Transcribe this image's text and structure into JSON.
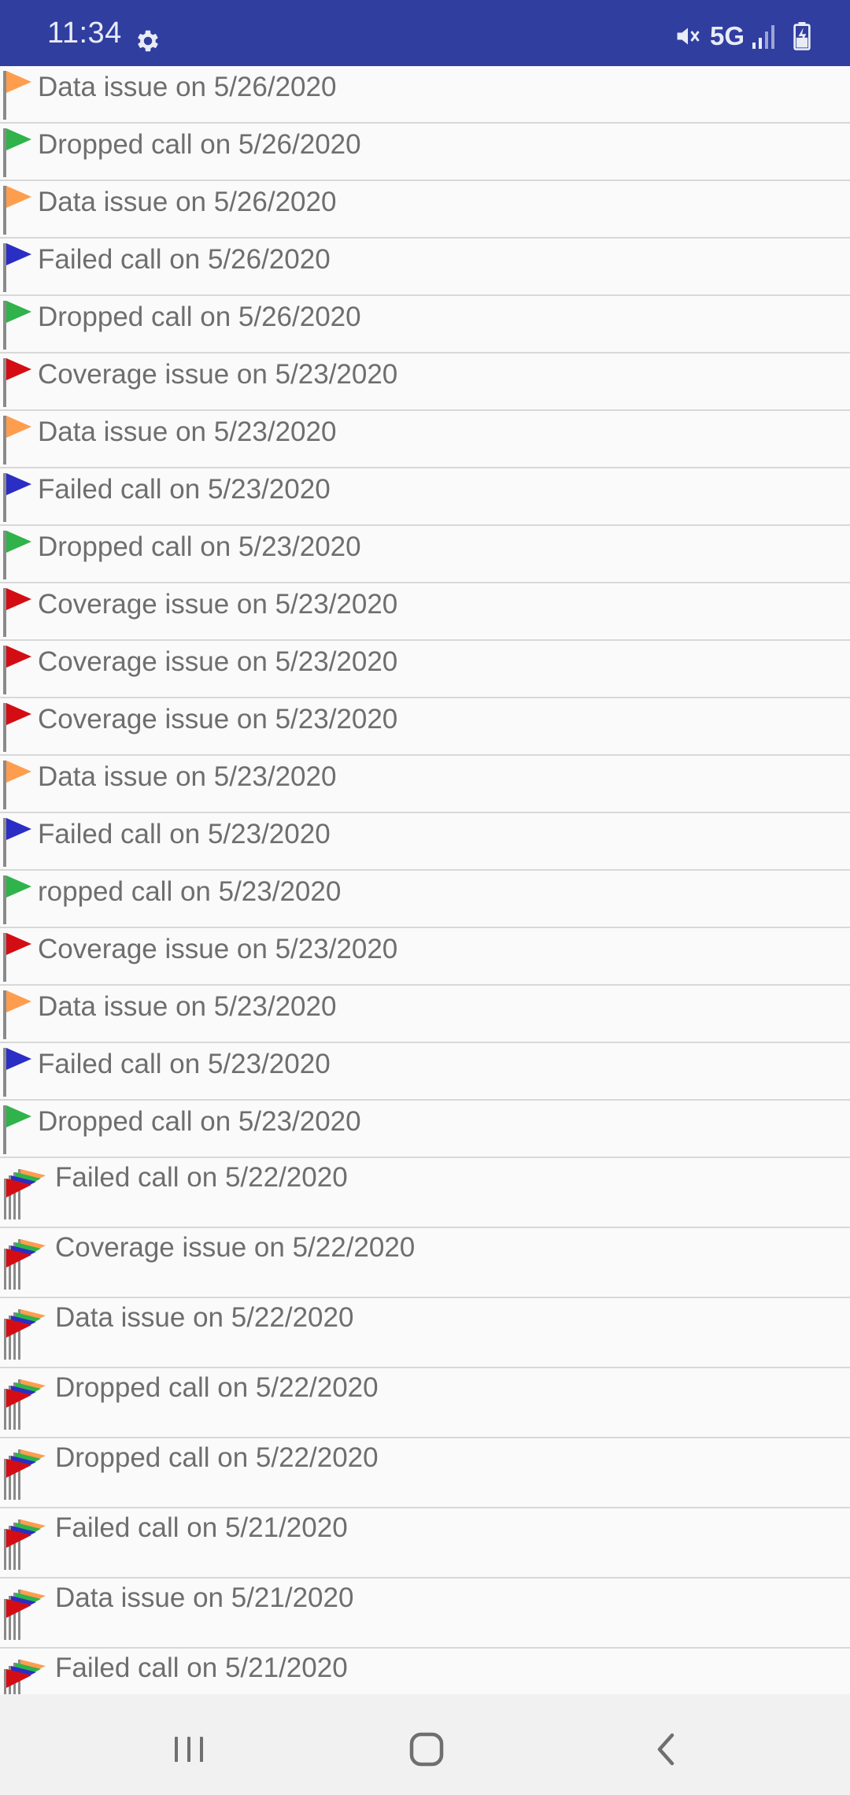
{
  "status_bar": {
    "time": "11:34",
    "network": "5G",
    "background_color": "#2f3e9f"
  },
  "flag_colors": {
    "data": "#ff9d4f",
    "dropped": "#2fb34a",
    "failed": "#2b2ec4",
    "coverage": "#d40d14",
    "pole": "#8a8a8a"
  },
  "list": {
    "items": [
      {
        "label": "Data issue on 5/26/2020",
        "flag": "data"
      },
      {
        "label": "Dropped call on 5/26/2020",
        "flag": "dropped"
      },
      {
        "label": "Data issue on 5/26/2020",
        "flag": "data"
      },
      {
        "label": "Failed call on 5/26/2020",
        "flag": "failed"
      },
      {
        "label": "Dropped call on 5/26/2020",
        "flag": "dropped"
      },
      {
        "label": "Coverage issue on 5/23/2020",
        "flag": "coverage"
      },
      {
        "label": "Data issue on 5/23/2020",
        "flag": "data"
      },
      {
        "label": "Failed call on 5/23/2020",
        "flag": "failed"
      },
      {
        "label": "Dropped call on 5/23/2020",
        "flag": "dropped"
      },
      {
        "label": "Coverage issue on 5/23/2020",
        "flag": "coverage"
      },
      {
        "label": "Coverage issue on 5/23/2020",
        "flag": "coverage"
      },
      {
        "label": "Coverage issue on 5/23/2020",
        "flag": "coverage"
      },
      {
        "label": "Data issue on 5/23/2020",
        "flag": "data"
      },
      {
        "label": "Failed call on 5/23/2020",
        "flag": "failed"
      },
      {
        "label": "ropped call on 5/23/2020",
        "flag": "dropped"
      },
      {
        "label": "Coverage issue on 5/23/2020",
        "flag": "coverage"
      },
      {
        "label": "Data issue on 5/23/2020",
        "flag": "data"
      },
      {
        "label": "Failed call on 5/23/2020",
        "flag": "failed"
      },
      {
        "label": "Dropped call on 5/23/2020",
        "flag": "dropped"
      },
      {
        "label": "Failed call on 5/22/2020",
        "flag": "multi"
      },
      {
        "label": "Coverage issue on 5/22/2020",
        "flag": "multi"
      },
      {
        "label": "Data issue on 5/22/2020",
        "flag": "multi"
      },
      {
        "label": "Dropped call on 5/22/2020",
        "flag": "multi"
      },
      {
        "label": "Dropped call on 5/22/2020",
        "flag": "multi"
      },
      {
        "label": "Failed call on 5/21/2020",
        "flag": "multi"
      },
      {
        "label": "Data issue on 5/21/2020",
        "flag": "multi"
      },
      {
        "label": "Failed call on 5/21/2020",
        "flag": "multi"
      }
    ]
  },
  "nav_bar": {
    "icons": [
      "recents-icon",
      "home-icon",
      "back-icon"
    ]
  }
}
